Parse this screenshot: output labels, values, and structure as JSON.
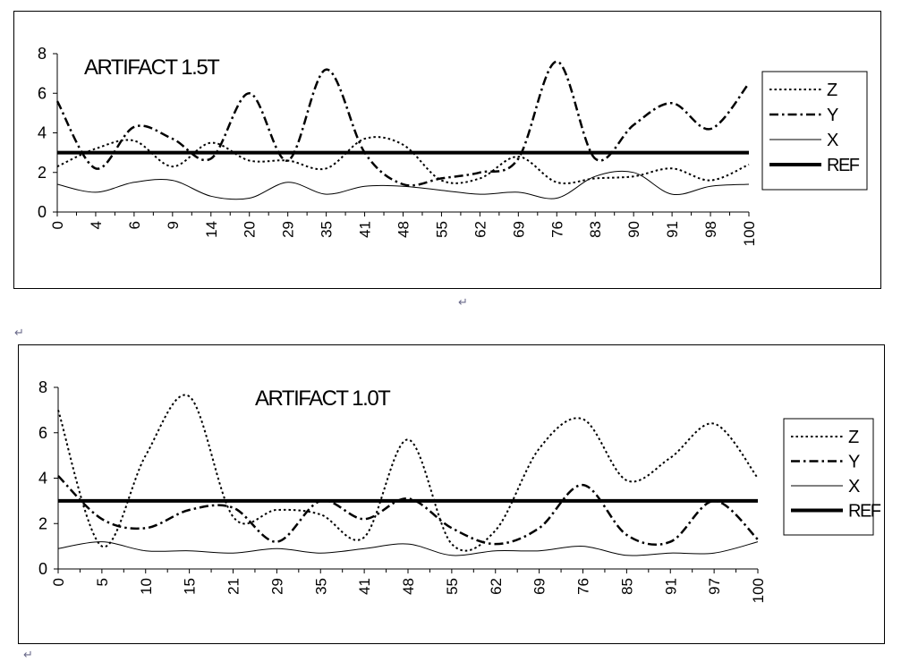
{
  "paragraph_mark": "↵",
  "chart_data": [
    {
      "type": "line",
      "title": "ARTIFACT  1.5T",
      "xlabel": "",
      "ylabel": "",
      "ylim": [
        0,
        8
      ],
      "yticks": [
        0,
        2,
        4,
        6,
        8
      ],
      "categories": [
        "0",
        "4",
        "6",
        "9",
        "14",
        "20",
        "29",
        "35",
        "41",
        "48",
        "55",
        "62",
        "69",
        "76",
        "83",
        "90",
        "91",
        "98",
        "100"
      ],
      "grid": false,
      "legend_position": "right",
      "series": [
        {
          "name": "Z",
          "style": "dotted",
          "values": [
            2.3,
            3.2,
            3.6,
            2.3,
            3.5,
            2.6,
            2.6,
            2.2,
            3.7,
            3.4,
            1.6,
            1.7,
            2.8,
            1.5,
            1.7,
            1.8,
            2.2,
            1.6,
            2.4
          ]
        },
        {
          "name": "Y",
          "style": "dash-dot",
          "values": [
            5.6,
            2.2,
            4.3,
            3.7,
            2.7,
            6.0,
            2.6,
            7.2,
            3.0,
            1.4,
            1.7,
            2.0,
            2.7,
            7.6,
            2.7,
            4.4,
            5.5,
            4.2,
            6.5
          ]
        },
        {
          "name": "X",
          "style": "thin-solid",
          "values": [
            1.4,
            1.0,
            1.5,
            1.6,
            0.8,
            0.7,
            1.5,
            0.9,
            1.3,
            1.3,
            1.1,
            0.9,
            1.0,
            0.7,
            1.8,
            2.0,
            0.9,
            1.3,
            1.4
          ]
        },
        {
          "name": "REF",
          "style": "thick-solid",
          "values": [
            3.0,
            3.0,
            3.0,
            3.0,
            3.0,
            3.0,
            3.0,
            3.0,
            3.0,
            3.0,
            3.0,
            3.0,
            3.0,
            3.0,
            3.0,
            3.0,
            3.0,
            3.0,
            3.0
          ]
        }
      ]
    },
    {
      "type": "line",
      "title": "ARTIFACT  1.0T",
      "xlabel": "",
      "ylabel": "",
      "ylim": [
        0,
        8
      ],
      "yticks": [
        0,
        2,
        4,
        6,
        8
      ],
      "categories": [
        "0",
        "5",
        "10",
        "15",
        "21",
        "29",
        "35",
        "41",
        "48",
        "55",
        "62",
        "69",
        "76",
        "85",
        "91",
        "97",
        "100"
      ],
      "grid": false,
      "legend_position": "right",
      "series": [
        {
          "name": "Z",
          "style": "dotted",
          "values": [
            7.0,
            1.0,
            5.0,
            7.6,
            2.3,
            2.6,
            2.4,
            1.4,
            5.7,
            1.1,
            1.7,
            5.3,
            6.6,
            3.9,
            4.9,
            6.4,
            4.0
          ]
        },
        {
          "name": "Y",
          "style": "dash-dot",
          "values": [
            4.1,
            2.2,
            1.8,
            2.6,
            2.7,
            1.2,
            3.0,
            2.2,
            3.1,
            1.8,
            1.1,
            1.8,
            3.7,
            1.5,
            1.2,
            3.0,
            1.3
          ]
        },
        {
          "name": "X",
          "style": "thin-solid",
          "values": [
            0.9,
            1.2,
            0.8,
            0.8,
            0.7,
            0.9,
            0.7,
            0.9,
            1.1,
            0.6,
            0.8,
            0.8,
            1.0,
            0.6,
            0.7,
            0.7,
            1.2
          ]
        },
        {
          "name": "REF",
          "style": "thick-solid",
          "values": [
            3.0,
            3.0,
            3.0,
            3.0,
            3.0,
            3.0,
            3.0,
            3.0,
            3.0,
            3.0,
            3.0,
            3.0,
            3.0,
            3.0,
            3.0,
            3.0,
            3.0
          ]
        }
      ]
    }
  ]
}
